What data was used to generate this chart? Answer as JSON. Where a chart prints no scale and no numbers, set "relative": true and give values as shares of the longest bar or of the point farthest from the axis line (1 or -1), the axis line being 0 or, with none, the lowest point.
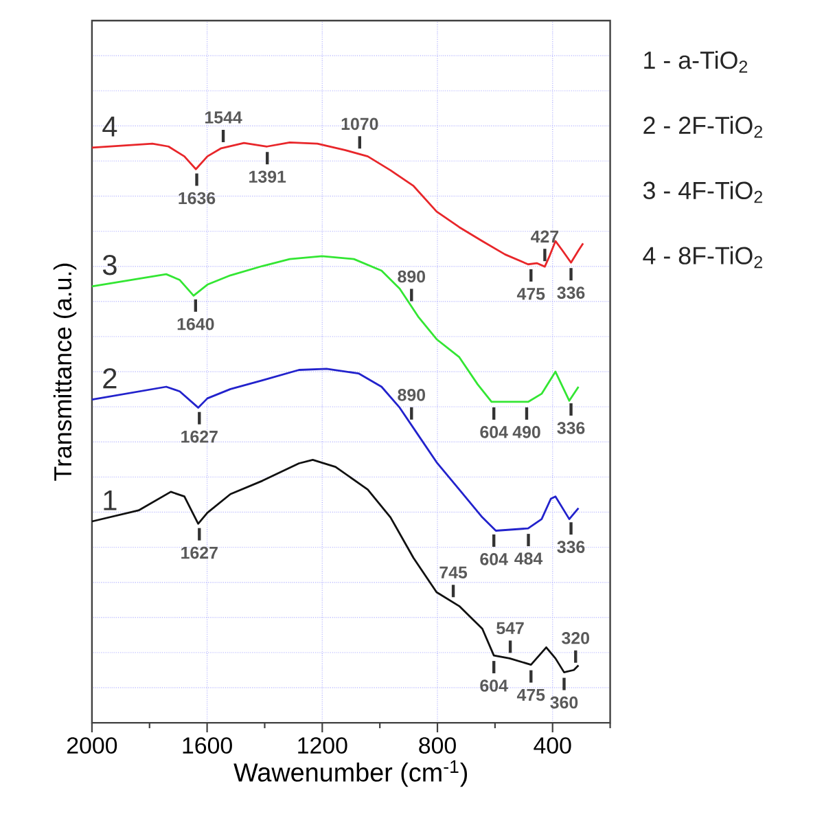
{
  "chart_data": {
    "type": "line",
    "relative": true,
    "xlabel": "Wawenumber (cm$^{-1}$)",
    "ylabel": "Transmittance (a.u.)",
    "xlim": [
      2000,
      200
    ],
    "xticks": [
      2000,
      {
        "value": 1800,
        "label": null
      },
      1600,
      {
        "value": 1400,
        "label": null
      },
      1200,
      {
        "value": 1000,
        "label": null
      },
      800,
      {
        "value": 600,
        "label": null
      },
      400,
      {
        "value": 200,
        "label": null
      }
    ],
    "grid": true,
    "tick_labels": "x",
    "series": [
      {
        "name": "1",
        "color": "#111111",
        "x": [
          2000,
          1838,
          1726,
          1679,
          1631,
          1599,
          1519,
          1408,
          1281,
          1233,
          1154,
          1042,
          963,
          883,
          803,
          724,
          644,
          604,
          549,
          475,
          422,
          390,
          360,
          326,
          310
        ],
        "values": [
          0.347,
          0.366,
          0.398,
          0.39,
          0.343,
          0.362,
          0.394,
          0.417,
          0.447,
          0.453,
          0.441,
          0.402,
          0.354,
          0.284,
          0.225,
          0.201,
          0.162,
          0.116,
          0.111,
          0.1,
          0.13,
          0.111,
          0.087,
          0.091,
          0.099
        ]
      },
      {
        "name": "2",
        "color": "#2222cc",
        "x": [
          2000,
          1742,
          1695,
          1631,
          1599,
          1519,
          1408,
          1281,
          1185,
          1074,
          994,
          931,
          867,
          803,
          724,
          644,
          597,
          485,
          438,
          406,
          390,
          342,
          310
        ],
        "values": [
          0.557,
          0.579,
          0.571,
          0.543,
          0.559,
          0.575,
          0.59,
          0.608,
          0.61,
          0.602,
          0.579,
          0.543,
          0.496,
          0.449,
          0.402,
          0.354,
          0.331,
          0.335,
          0.351,
          0.386,
          0.39,
          0.351,
          0.37
        ]
      },
      {
        "name": "3",
        "color": "#33e633",
        "x": [
          2000,
          1742,
          1695,
          1647,
          1599,
          1519,
          1408,
          1313,
          1201,
          1090,
          994,
          931,
          867,
          803,
          724,
          660,
          612,
          485,
          438,
          390,
          342,
          310
        ],
        "values": [
          0.752,
          0.773,
          0.763,
          0.736,
          0.755,
          0.771,
          0.787,
          0.799,
          0.804,
          0.799,
          0.779,
          0.748,
          0.7,
          0.661,
          0.63,
          0.583,
          0.553,
          0.553,
          0.567,
          0.605,
          0.555,
          0.579
        ]
      },
      {
        "name": "4",
        "color": "#e8262a",
        "x": [
          2000,
          1790,
          1734,
          1679,
          1639,
          1599,
          1551,
          1472,
          1392,
          1313,
          1217,
          1122,
          1042,
          963,
          883,
          803,
          724,
          644,
          565,
          485,
          455,
          427,
          410,
          390,
          366,
          336,
          310,
          294
        ],
        "values": [
          0.991,
          0.998,
          0.993,
          0.976,
          0.954,
          0.976,
          0.99,
          0.999,
          0.993,
          1.0,
          0.998,
          0.987,
          0.976,
          0.952,
          0.925,
          0.881,
          0.854,
          0.83,
          0.807,
          0.79,
          0.792,
          0.786,
          0.805,
          0.83,
          0.814,
          0.793,
          0.814,
          0.826
        ]
      }
    ],
    "annotations": [
      {
        "text": "1544",
        "x": 1544,
        "y": 0.991
      },
      {
        "text": "1636",
        "x": 1636,
        "y": 0.956
      },
      {
        "text": "1391",
        "x": 1391,
        "y": 0.993
      },
      {
        "text": "1070",
        "x": 1070,
        "y": 0.98
      },
      {
        "text": "336",
        "x": 336,
        "y": 0.793
      },
      {
        "text": "427",
        "x": 427,
        "y": 0.786
      },
      {
        "text": "475",
        "x": 475,
        "y": 0.791
      },
      {
        "text": "1640",
        "x": 1640,
        "y": 0.739
      },
      {
        "text": "890",
        "x": 890,
        "y": 0.717
      },
      {
        "text": "604",
        "x": 604,
        "y": 0.553
      },
      {
        "text": "336",
        "x": 336,
        "y": 0.56
      },
      {
        "text": "490",
        "x": 490,
        "y": 0.553
      },
      {
        "text": "1627",
        "x": 1627,
        "y": 0.545
      },
      {
        "text": "890",
        "x": 890,
        "y": 0.513
      },
      {
        "text": "604",
        "x": 604,
        "y": 0.334
      },
      {
        "text": "336",
        "x": 336,
        "y": 0.355
      },
      {
        "text": "484",
        "x": 484,
        "y": 0.335
      },
      {
        "text": "1627",
        "x": 1627,
        "y": 0.345
      },
      {
        "text": "745",
        "x": 745,
        "y": 0.207
      },
      {
        "text": "360",
        "x": 360,
        "y": 0.087
      },
      {
        "text": "604",
        "x": 604,
        "y": 0.116
      },
      {
        "text": "475",
        "x": 475,
        "y": 0.1
      },
      {
        "text": "547",
        "x": 547,
        "y": 0.111
      },
      {
        "text": "320",
        "x": 320,
        "y": 0.094
      },
      "1 - a-TiO$_{2}$",
      "2 - 2F-TiO$_{2}$",
      "3 - 4F-TiO$_{2}$",
      "4 - 8F-TiO$_{2}$"
    ]
  }
}
